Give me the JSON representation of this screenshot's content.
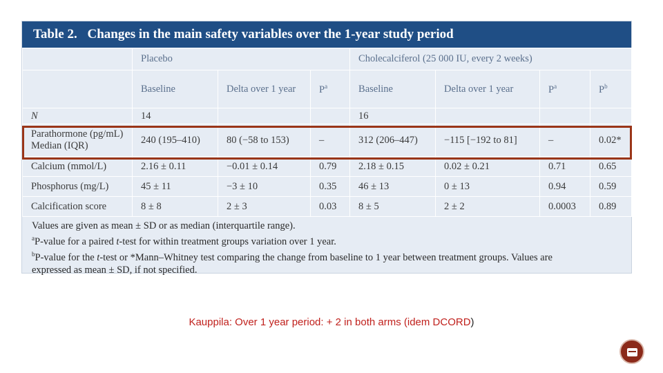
{
  "table": {
    "title_num": "Table 2.",
    "title_text": "Changes in the main safety variables over the 1-year study period",
    "group_placebo": "Placebo",
    "group_chole": "Cholecalciferol (25 000 IU, every 2 weeks)",
    "headers": {
      "baseline": "Baseline",
      "delta": "Delta over 1 year",
      "p": "P",
      "sup_a": "a",
      "sup_b": "b"
    },
    "rows": [
      {
        "label": "N",
        "pb": "14",
        "pd": "",
        "pp": "",
        "cb": "16",
        "cd": "",
        "cp": "",
        "pb2": ""
      },
      {
        "label": "Parathormone (pg/mL) Median (IQR)",
        "pb": "240 (195–410)",
        "pd": "80 (−58 to 153)",
        "pp": "–",
        "cb": "312 (206–447)",
        "cd": "−115 [−192 to 81]",
        "cp": "–",
        "pb2": "0.02*"
      },
      {
        "label": "Calcium (mmol/L)",
        "pb": "2.16 ± 0.11",
        "pd": "−0.01 ± 0.14",
        "pp": "0.79",
        "cb": "2.18 ± 0.15",
        "cd": "0.02 ± 0.21",
        "cp": "0.71",
        "pb2": "0.65"
      },
      {
        "label": "Phosphorus (mg/L)",
        "pb": "45 ± 11",
        "pd": "−3 ± 10",
        "pp": "0.35",
        "cb": "46 ± 13",
        "cd": "0 ± 13",
        "cp": "0.94",
        "pb2": "0.59"
      },
      {
        "label": "Calcification score",
        "pb": "8 ± 8",
        "pd": "2 ± 3",
        "pp": "0.03",
        "cb": "8 ± 5",
        "cd": "2 ± 2",
        "cp": "0.0003",
        "pb2": "0.89"
      }
    ],
    "footnotes": {
      "line1": "Values are given as mean ± SD or as median (interquartile range).",
      "a_sup": "a",
      "a_pre": "P-value for a paired ",
      "a_t": "t",
      "a_post": "-test for within treatment groups variation over 1 year.",
      "b_sup": "b",
      "b_pre": "P-value for the ",
      "b_t": "t",
      "b_post": "-test or *Mann–Whitney test comparing the change from baseline to 1 year between treatment groups. Values are",
      "line4": "expressed as mean ± SD, if not specified."
    }
  },
  "caption": {
    "main": "Kauppila: Over 1 year period:  + 2 in both arms (idem DCORD",
    "end": ")"
  },
  "colors": {
    "title_bar": "#1f4e85",
    "table_bg": "#e6ecf4",
    "highlight": "#9a3518",
    "caption": "#c0201c"
  }
}
